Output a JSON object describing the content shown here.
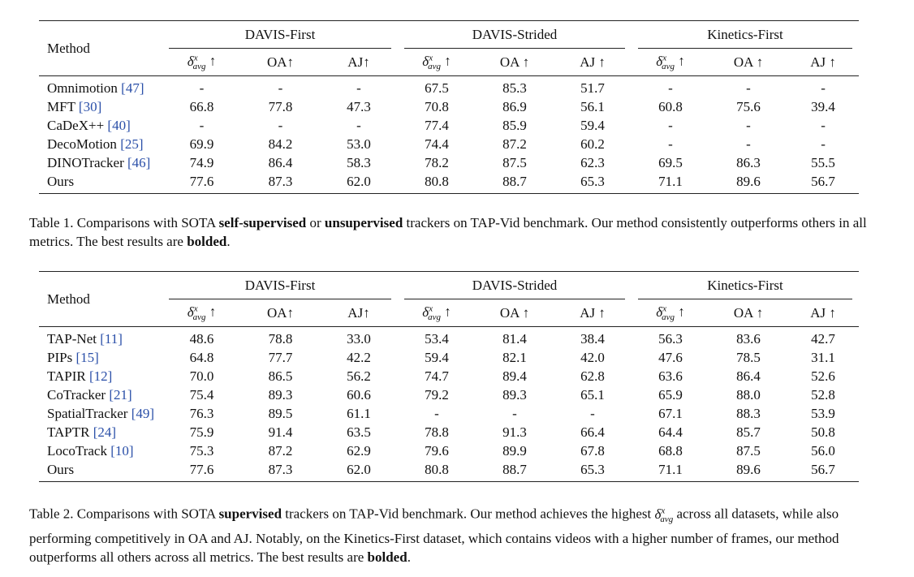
{
  "headers": {
    "method": "Method",
    "groups": [
      "DAVIS-First",
      "DAVIS-Strided",
      "Kinetics-First"
    ],
    "metric_delta_base": "δ",
    "metric_delta_sub": "avg",
    "metric_delta_sup": "x",
    "metrics": [
      "OA↑",
      "AJ↑",
      "OA ↑",
      "AJ ↑"
    ],
    "arrow": "↑"
  },
  "table1": {
    "rows": [
      {
        "name": "Omnimotion ",
        "ref": "[47]",
        "vals": [
          "-",
          "-",
          "-",
          "67.5",
          "85.3",
          "51.7",
          "-",
          "-",
          "-"
        ]
      },
      {
        "name": "MFT ",
        "ref": "[30]",
        "vals": [
          "66.8",
          "77.8",
          "47.3",
          "70.8",
          "86.9",
          "56.1",
          "60.8",
          "75.6",
          "39.4"
        ]
      },
      {
        "name": "CaDeX++ ",
        "ref": "[40]",
        "vals": [
          "-",
          "-",
          "-",
          "77.4",
          "85.9",
          "59.4",
          "-",
          "-",
          "-"
        ]
      },
      {
        "name": "DecoMotion ",
        "ref": "[25]",
        "vals": [
          "69.9",
          "84.2",
          "53.0",
          "74.4",
          "87.2",
          "60.2",
          "-",
          "-",
          "-"
        ]
      },
      {
        "name": "DINOTracker ",
        "ref": "[46]",
        "vals": [
          "74.9",
          "86.4",
          "58.3",
          "78.2",
          "87.5",
          "62.3",
          "69.5",
          "86.3",
          "55.5"
        ]
      },
      {
        "name": "Ours",
        "ref": "",
        "vals": [
          "77.6",
          "87.3",
          "62.0",
          "80.8",
          "88.7",
          "65.3",
          "71.1",
          "89.6",
          "56.7"
        ]
      }
    ]
  },
  "table2": {
    "rows": [
      {
        "name": "TAP-Net ",
        "ref": "[11]",
        "vals": [
          "48.6",
          "78.8",
          "33.0",
          "53.4",
          "81.4",
          "38.4",
          "56.3",
          "83.6",
          "42.7"
        ]
      },
      {
        "name": "PIPs ",
        "ref": "[15]",
        "vals": [
          "64.8",
          "77.7",
          "42.2",
          "59.4",
          "82.1",
          "42.0",
          "47.6",
          "78.5",
          "31.1"
        ]
      },
      {
        "name": "TAPIR ",
        "ref": "[12]",
        "vals": [
          "70.0",
          "86.5",
          "56.2",
          "74.7",
          "89.4",
          "62.8",
          "63.6",
          "86.4",
          "52.6"
        ]
      },
      {
        "name": "CoTracker ",
        "ref": "[21]",
        "vals": [
          "75.4",
          "89.3",
          "60.6",
          "79.2",
          "89.3",
          "65.1",
          "65.9",
          "88.0",
          "52.8"
        ]
      },
      {
        "name": "SpatialTracker ",
        "ref": "[49]",
        "vals": [
          "76.3",
          "89.5",
          "61.1",
          "-",
          "-",
          "-",
          "67.1",
          "88.3",
          "53.9"
        ]
      },
      {
        "name": "TAPTR ",
        "ref": "[24]",
        "vals": [
          "75.9",
          "91.4",
          "63.5",
          "78.8",
          "91.3",
          "66.4",
          "64.4",
          "85.7",
          "50.8"
        ]
      },
      {
        "name": "LocoTrack ",
        "ref": "[10]",
        "vals": [
          "75.3",
          "87.2",
          "62.9",
          "79.6",
          "89.9",
          "67.8",
          "68.8",
          "87.5",
          "56.0"
        ]
      },
      {
        "name": "Ours",
        "ref": "",
        "vals": [
          "77.6",
          "87.3",
          "62.0",
          "80.8",
          "88.7",
          "65.3",
          "71.1",
          "89.6",
          "56.7"
        ]
      }
    ]
  },
  "caption1": {
    "p1": "Table 1. Comparisons with SOTA ",
    "b1": "self-supervised",
    "p2": " or ",
    "b2": "unsupervised",
    "p3": " trackers on TAP-Vid benchmark. Our method consistently outperforms others in all metrics. The best results are ",
    "b3": "bolded",
    "p4": "."
  },
  "caption2": {
    "p1": "Table 2. Comparisons with SOTA ",
    "b1": "supervised",
    "p2": " trackers on TAP-Vid benchmark. Our method achieves the highest ",
    "p3": " across all datasets, while also performing competitively in OA and AJ. Notably, on the Kinetics-First dataset, which contains videos with a higher number of frames, our method outperforms all others across all metrics. The best results are ",
    "b2": "bolded",
    "p4": "."
  }
}
